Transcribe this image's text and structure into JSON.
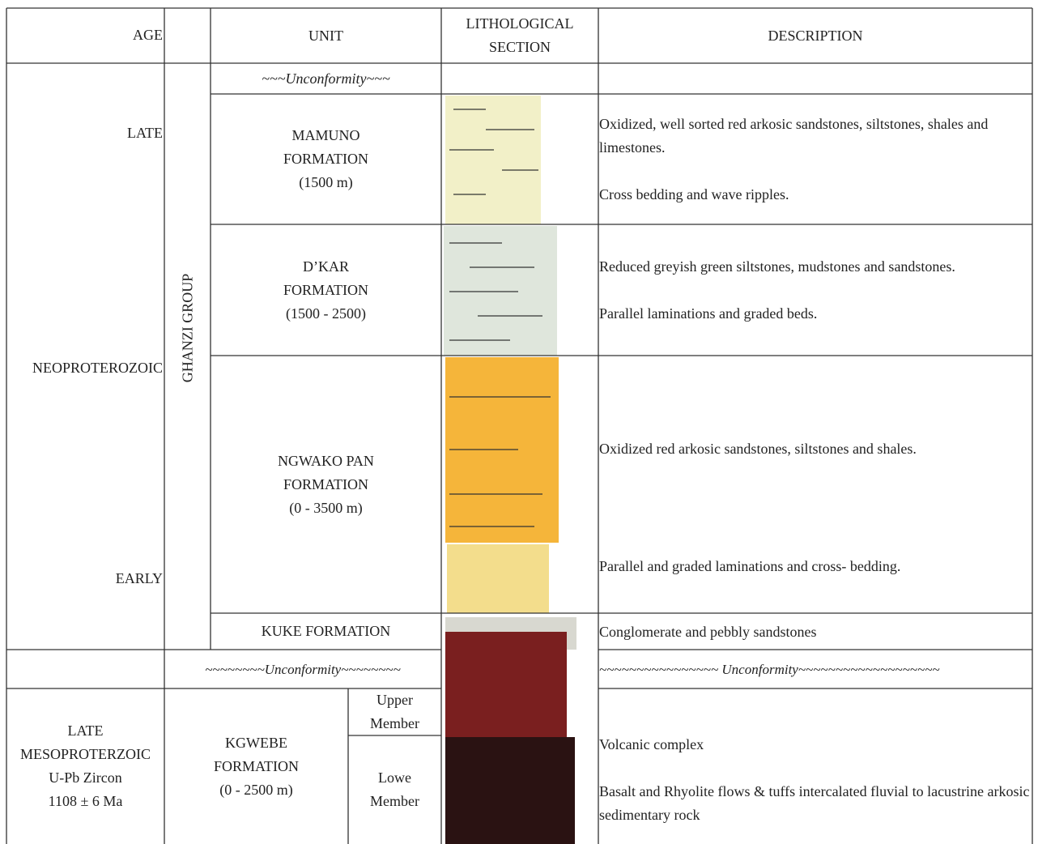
{
  "header": {
    "age": "AGE",
    "unit": "UNIT",
    "lithological_section": [
      "LITHOLOGICAL",
      "SECTION"
    ],
    "description": "DESCRIPTION"
  },
  "age_labels": {
    "late": "LATE",
    "neoproterozoic": "NEOPROTEROZOIC",
    "early": "EARLY",
    "late_mesoproterozoic": [
      "LATE",
      "MESOPROTERZOIC",
      "U-Pb Zircon",
      "1108 ± 6 Ma"
    ]
  },
  "group": "GHANZI GROUP",
  "unconformities": [
    "~~~Unconformity~~~",
    "~~~~~~~~Unconformity~~~~~~~~",
    "~~~~~~~~~~~~~~~~ Unconformity~~~~~~~~~~~~~~~~~~~"
  ],
  "units": [
    {
      "name": [
        "MAMUNO",
        "FORMATION",
        "(1500 m)"
      ],
      "description": [
        "Oxidized, well sorted red arkosic sandstones, siltstones, shales and limestones.",
        "Cross bedding and wave ripples."
      ]
    },
    {
      "name": [
        "D’KAR",
        "FORMATION",
        "(1500 - 2500)"
      ],
      "description": [
        "Reduced greyish green siltstones, mudstones and sandstones.",
        "Parallel laminations and graded beds."
      ]
    },
    {
      "name": [
        "NGWAKO PAN",
        "FORMATION",
        "(0 - 3500 m)"
      ],
      "description": [
        "Oxidized red arkosic sandstones, siltstones and shales.",
        "Parallel and graded laminations and cross- bedding."
      ]
    },
    {
      "name": [
        "KUKE FORMATION"
      ],
      "description": [
        "Conglomerate and pebbly sandstones"
      ]
    }
  ],
  "kgwebe": {
    "name": [
      "KGWEBE",
      "FORMATION",
      "(0 - 2500 m)"
    ],
    "members": [
      [
        "Upper",
        "Member"
      ],
      [
        "Lowe",
        "Member"
      ]
    ],
    "description": [
      "Volcanic complex",
      "Basalt and Rhyolite flows & tuffs intercalated fluvial to lacustrine arkosic sedimentary rock"
    ]
  }
}
